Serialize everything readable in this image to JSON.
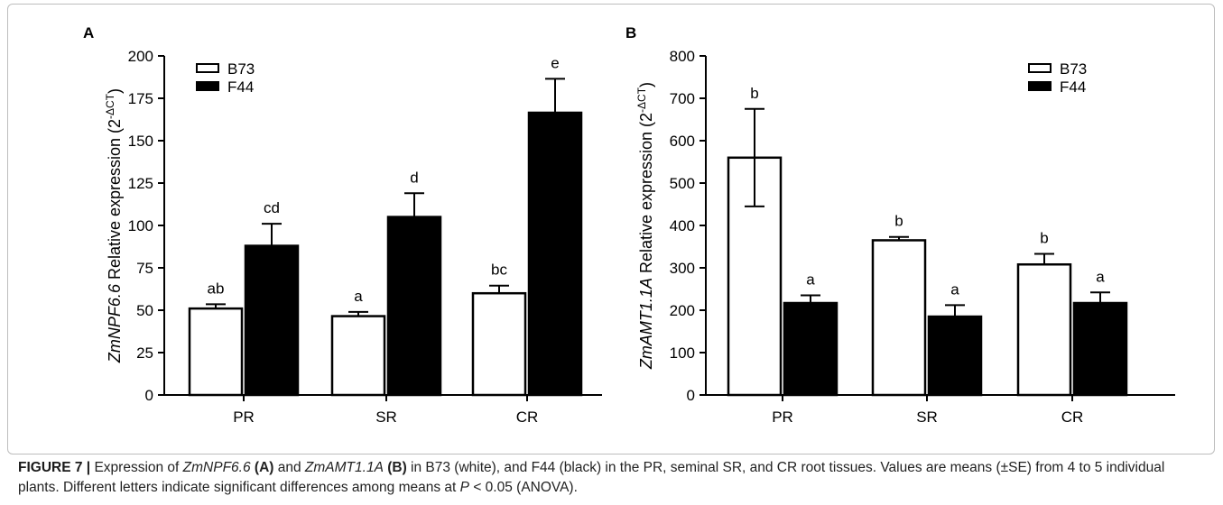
{
  "chart_data": [
    {
      "type": "bar",
      "panel_label": "A",
      "ylabel_gene": "ZmNPF6.6",
      "ylabel_text": " Relative expression (2",
      "ylabel_sup": "-ΔCT",
      "ylabel_close": ")",
      "ylim": [
        0,
        200
      ],
      "yticks": [
        0,
        25,
        50,
        75,
        100,
        125,
        150,
        175,
        200
      ],
      "categories": [
        "PR",
        "SR",
        "CR"
      ],
      "series": [
        {
          "name": "B73",
          "fill": "#ffffff",
          "values": [
            51,
            46.5,
            60
          ],
          "errors": [
            2.5,
            2.5,
            4.5
          ],
          "letters": [
            "ab",
            "a",
            "bc"
          ]
        },
        {
          "name": "F44",
          "fill": "#000000",
          "values": [
            88,
            105,
            166.5
          ],
          "errors": [
            13,
            14,
            20
          ],
          "letters": [
            "cd",
            "d",
            "e"
          ]
        }
      ],
      "legend_position": "top-left"
    },
    {
      "type": "bar",
      "panel_label": "B",
      "ylabel_gene": "ZmAMT1.1A",
      "ylabel_text": " Relative expression (2",
      "ylabel_sup": "-ΔCT",
      "ylabel_close": ")",
      "ylim": [
        0,
        800
      ],
      "yticks": [
        0,
        100,
        200,
        300,
        400,
        500,
        600,
        700,
        800
      ],
      "categories": [
        "PR",
        "SR",
        "CR"
      ],
      "series": [
        {
          "name": "B73",
          "fill": "#ffffff",
          "values": [
            560,
            365,
            308
          ],
          "errors": [
            115,
            8,
            25
          ],
          "letters": [
            "b",
            "b",
            "b"
          ]
        },
        {
          "name": "F44",
          "fill": "#000000",
          "values": [
            217,
            185,
            217
          ],
          "errors": [
            18,
            27,
            25
          ],
          "letters": [
            "a",
            "a",
            "a"
          ]
        }
      ],
      "legend_position": "top-right"
    }
  ],
  "caption": {
    "label": "FIGURE 7 |",
    "t1": " Expression of ",
    "gene1": "ZmNPF6.6",
    "panelA": " (A)",
    "t2": " and ",
    "gene2": "ZmAMT1.1A",
    "panelB": " (B)",
    "t3": " in B73 (white), and F44 (black) in the PR, seminal SR, and CR root tissues. Values are means (±SE) from 4 to 5 individual plants. Different letters indicate significant differences among means at ",
    "pvar": "P",
    "t4": " < 0.05 (ANOVA)."
  }
}
